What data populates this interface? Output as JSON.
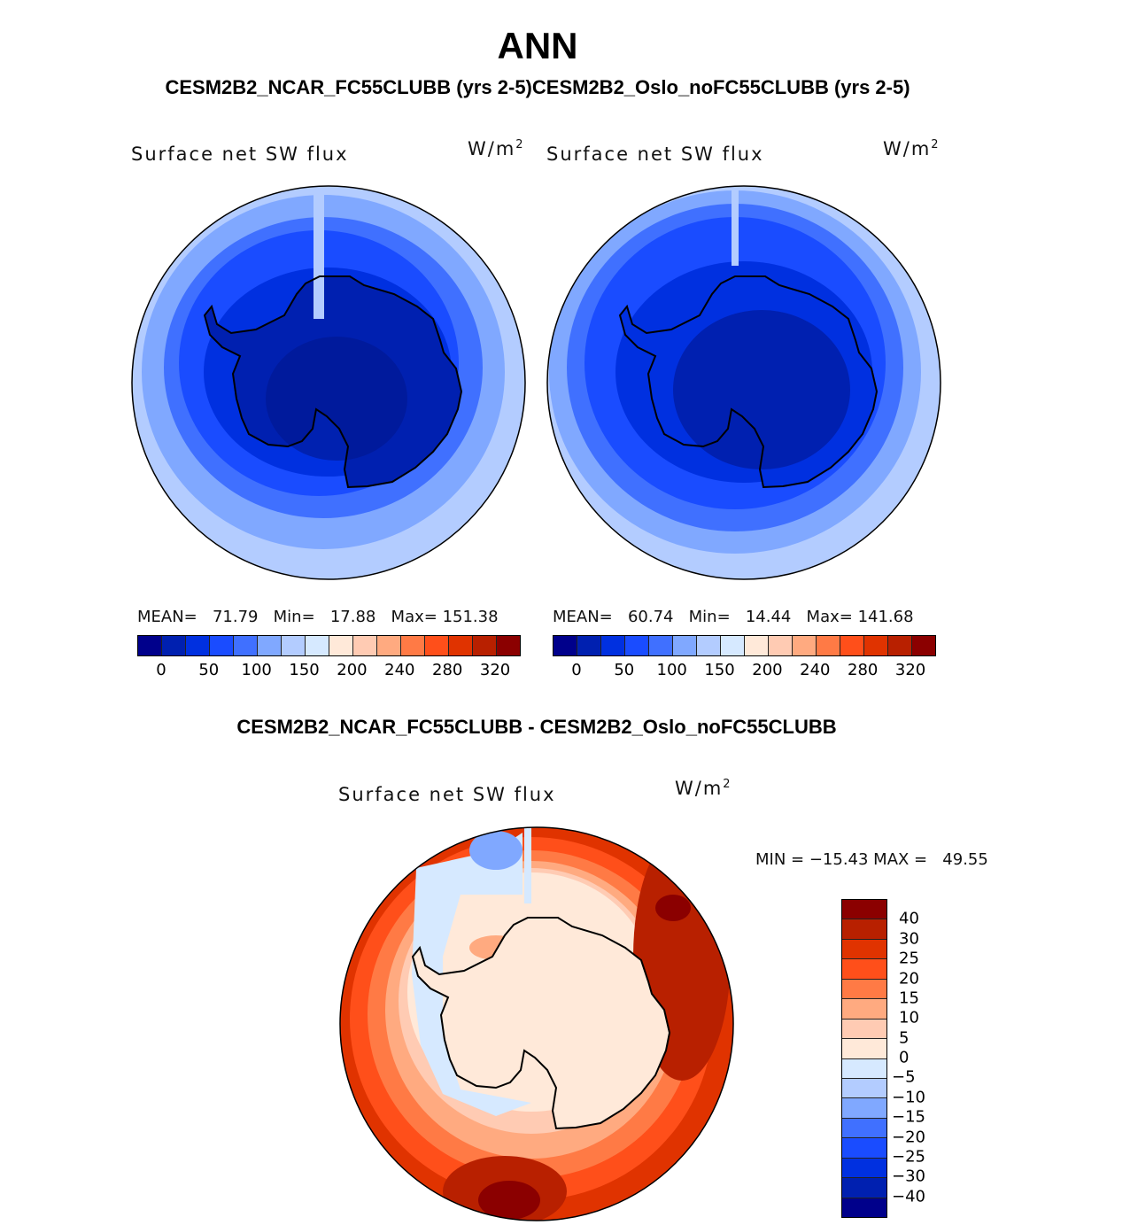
{
  "header": {
    "title": "ANN",
    "subtitle": "CESM2B2_NCAR_FC55CLUBB (yrs 2-5)CESM2B2_Oslo_noFC55CLUBB (yrs 2-5)"
  },
  "panels": [
    {
      "variable": "Surface net SW flux",
      "unit_base": "W/m",
      "unit_exp": "2",
      "mean_label": "MEAN=",
      "mean": "71.79",
      "min_label": "Min=",
      "min": "17.88",
      "max_label": "Max=",
      "max": "151.38"
    },
    {
      "variable": "Surface net SW flux",
      "unit_base": "W/m",
      "unit_exp": "2",
      "mean_label": "MEAN=",
      "mean": "60.74",
      "min_label": "Min=",
      "min": "14.44",
      "max_label": "Max=",
      "max": "141.68"
    }
  ],
  "diff": {
    "title": "CESM2B2_NCAR_FC55CLUBB - CESM2B2_Oslo_noFC55CLUBB",
    "variable": "Surface net SW flux",
    "unit_base": "W/m",
    "unit_exp": "2",
    "minmax": "MIN = −15.43 MAX =   49.55"
  },
  "chart_data": {
    "type": "heatmap",
    "projection": "south-polar stereographic",
    "colors": [
      "#00008b",
      "#0020b0",
      "#0030e0",
      "#1a4cff",
      "#4070ff",
      "#80a8ff",
      "#b3ccff",
      "#d6e9ff",
      "#ffe9d9",
      "#ffcbb3",
      "#ffaa80",
      "#ff7a45",
      "#ff4f1a",
      "#e03300",
      "#b82000",
      "#8b0000"
    ],
    "abs_tick_labels": [
      "0",
      "50",
      "100",
      "150",
      "200",
      "240",
      "280",
      "320"
    ],
    "diff_tick_labels": [
      "40",
      "30",
      "25",
      "20",
      "15",
      "10",
      "5",
      "0",
      "−5",
      "−10",
      "−15",
      "−20",
      "−25",
      "−30",
      "−40"
    ]
  }
}
